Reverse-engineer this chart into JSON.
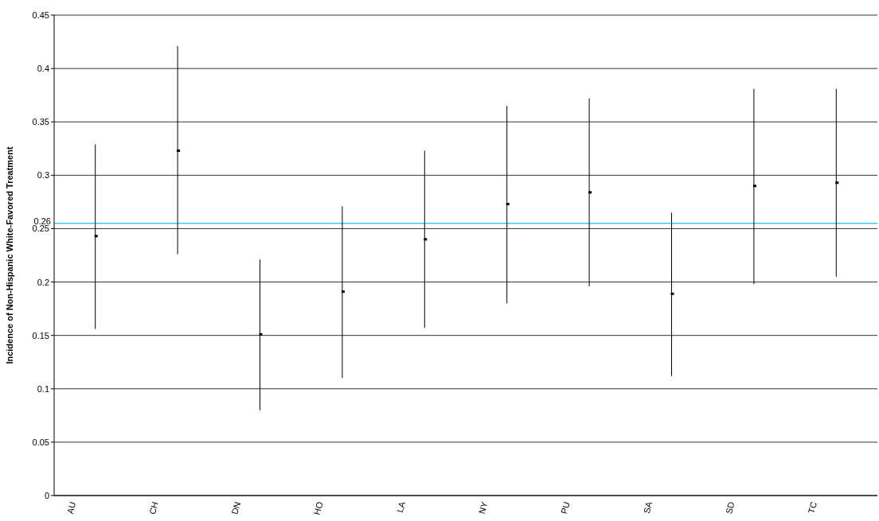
{
  "chart_data": {
    "type": "scatter",
    "ylabel": "Incidence of Non-Hispanic White-Favored Treatment",
    "categories": [
      "AU",
      "CH",
      "DN",
      "HO",
      "LA",
      "NY",
      "PU",
      "SA",
      "SD",
      "TC"
    ],
    "series": [
      {
        "color": "#000000",
        "values": [
          0.243,
          0.323,
          0.151,
          0.191,
          0.24,
          0.273,
          0.284,
          0.189,
          0.29,
          0.293
        ],
        "errors": [
          [
            0.156,
            0.329
          ],
          [
            0.226,
            0.421
          ],
          [
            0.08,
            0.221
          ],
          [
            0.11,
            0.271
          ],
          [
            0.157,
            0.323
          ],
          [
            0.18,
            0.365
          ],
          [
            0.196,
            0.372
          ],
          [
            0.112,
            0.265
          ],
          [
            0.198,
            0.381
          ],
          [
            0.205,
            0.381
          ]
        ]
      }
    ],
    "ylim": [
      0,
      0.45
    ],
    "yticks": [
      0,
      0.05,
      0.1,
      0.15,
      0.2,
      0.25,
      0.3,
      0.35,
      0.4,
      0.45
    ],
    "grid": "y",
    "marker": "square",
    "ref_lines": [
      {
        "axis": "y",
        "value": 0.255,
        "label": "0.26",
        "color": "#33ccee"
      }
    ]
  }
}
